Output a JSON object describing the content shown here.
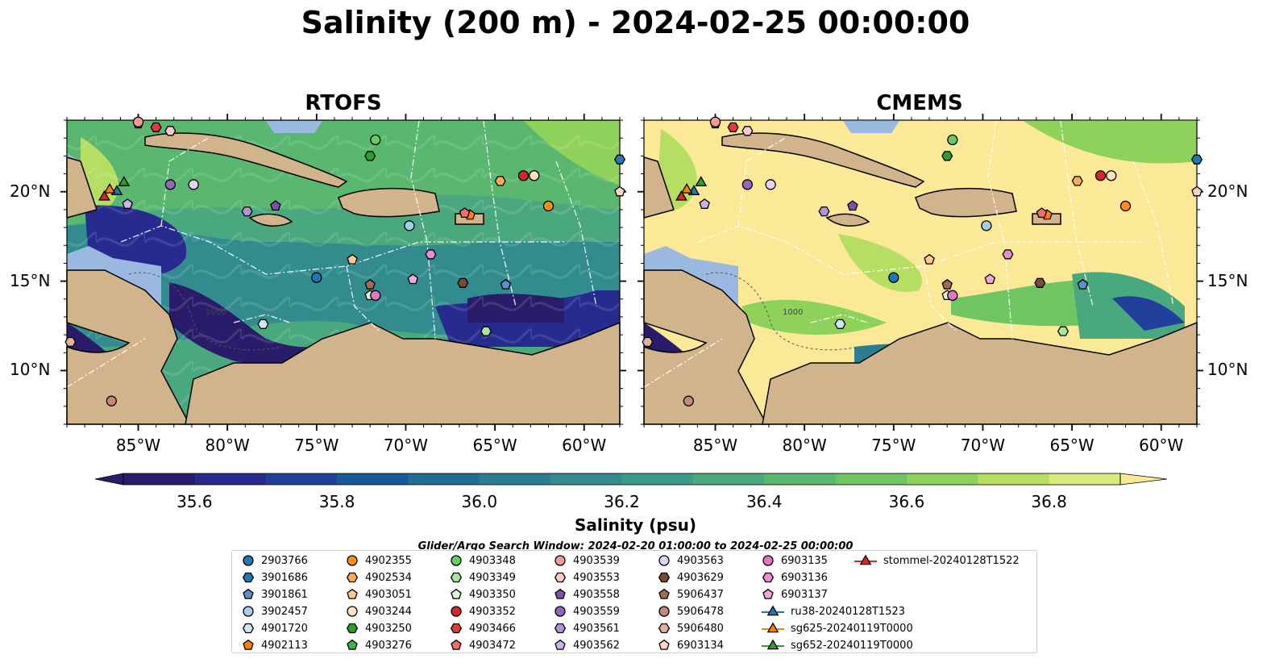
{
  "title": "Salinity (200 m) - 2024-02-25 00:00:00",
  "panels": [
    {
      "title": "RTOFS"
    },
    {
      "title": "CMEMS"
    }
  ],
  "map": {
    "lon_range": [
      -89,
      -58
    ],
    "lat_range": [
      7,
      24
    ],
    "x_ticks": [
      "85°W",
      "80°W",
      "75°W",
      "70°W",
      "65°W",
      "60°W"
    ],
    "y_ticks": [
      "20°N",
      "15°N",
      "10°N"
    ],
    "contour_label": "1000",
    "colors": {
      "land": "#d2b48c",
      "shallow": "#9ab8e0",
      "deep": "#2a1b6b"
    }
  },
  "colorbar": {
    "label": "Salinity (psu)",
    "ticks": [
      "35.6",
      "35.8",
      "36.0",
      "36.2",
      "36.4",
      "36.6",
      "36.8"
    ],
    "range": [
      35.5,
      36.9
    ],
    "extend": "both",
    "colors": [
      "#2b1b6b",
      "#272a8f",
      "#20409c",
      "#17599a",
      "#206d95",
      "#2a7e92",
      "#328c8e",
      "#3b9a87",
      "#4aa87e",
      "#5ab770",
      "#70c563",
      "#8fd25b",
      "#b5de63",
      "#d9e97a"
    ],
    "over_color": "#fbe997"
  },
  "search_window": "Glider/Argo Search Window: 2024-02-20 01:00:00 to 2024-02-25 00:00:00",
  "legend": [
    {
      "label": "2903766",
      "marker": "circle",
      "color": "#1f77b4"
    },
    {
      "label": "3901686",
      "marker": "hexagon",
      "color": "#1f77b4"
    },
    {
      "label": "3901861",
      "marker": "pentagon",
      "color": "#5f8fc8"
    },
    {
      "label": "3902457",
      "marker": "circle",
      "color": "#a6cee8"
    },
    {
      "label": "4901720",
      "marker": "hexagon",
      "color": "#cfe6f6"
    },
    {
      "label": "4902113",
      "marker": "pentagon",
      "color": "#ff7f0e"
    },
    {
      "label": "4902355",
      "marker": "circle",
      "color": "#ff8c1a"
    },
    {
      "label": "4902534",
      "marker": "hexagon",
      "color": "#ffaa55"
    },
    {
      "label": "4903051",
      "marker": "pentagon",
      "color": "#ffc890"
    },
    {
      "label": "4903244",
      "marker": "circle",
      "color": "#ffe2c0"
    },
    {
      "label": "4903250",
      "marker": "hexagon",
      "color": "#2ca02c"
    },
    {
      "label": "4903276",
      "marker": "pentagon",
      "color": "#3cb44b"
    },
    {
      "label": "4903348",
      "marker": "circle",
      "color": "#66cc66"
    },
    {
      "label": "4903349",
      "marker": "hexagon",
      "color": "#aae6a0"
    },
    {
      "label": "4903350",
      "marker": "pentagon",
      "color": "#ddf5d5"
    },
    {
      "label": "4903352",
      "marker": "circle",
      "color": "#d62728"
    },
    {
      "label": "4903466",
      "marker": "hexagon",
      "color": "#e03a3a"
    },
    {
      "label": "4903472",
      "marker": "pentagon",
      "color": "#f07070"
    },
    {
      "label": "4903539",
      "marker": "circle",
      "color": "#f49a9a"
    },
    {
      "label": "4903553",
      "marker": "hexagon",
      "color": "#fccaca"
    },
    {
      "label": "4903558",
      "marker": "pentagon",
      "color": "#7b52b0"
    },
    {
      "label": "4903559",
      "marker": "circle",
      "color": "#9467bd"
    },
    {
      "label": "4903561",
      "marker": "hexagon",
      "color": "#b294d6"
    },
    {
      "label": "4903562",
      "marker": "pentagon",
      "color": "#cbb2e8"
    },
    {
      "label": "4903563",
      "marker": "circle",
      "color": "#e3d4f5"
    },
    {
      "label": "4903629",
      "marker": "hexagon",
      "color": "#7a4b3a"
    },
    {
      "label": "5906437",
      "marker": "pentagon",
      "color": "#a06a55"
    },
    {
      "label": "5906478",
      "marker": "circle",
      "color": "#c0897a"
    },
    {
      "label": "5906480",
      "marker": "hexagon",
      "color": "#e0b0a0"
    },
    {
      "label": "6903134",
      "marker": "pentagon",
      "color": "#f8d5c8"
    },
    {
      "label": "6903135",
      "marker": "circle",
      "color": "#e377c2"
    },
    {
      "label": "6903136",
      "marker": "hexagon",
      "color": "#ea8ccf"
    },
    {
      "label": "6903137",
      "marker": "pentagon",
      "color": "#f2a8dc"
    },
    {
      "label": "ru38-20240128T1523",
      "marker": "triangle",
      "color": "#1f77b4"
    },
    {
      "label": "sg625-20240119T0000",
      "marker": "triangle",
      "color": "#ff7f0e"
    },
    {
      "label": "sg652-20240119T0000",
      "marker": "triangle",
      "color": "#2ca02c"
    },
    {
      "label": "stommel-20240128T1522",
      "marker": "triangle",
      "color": "#d62728"
    }
  ]
}
